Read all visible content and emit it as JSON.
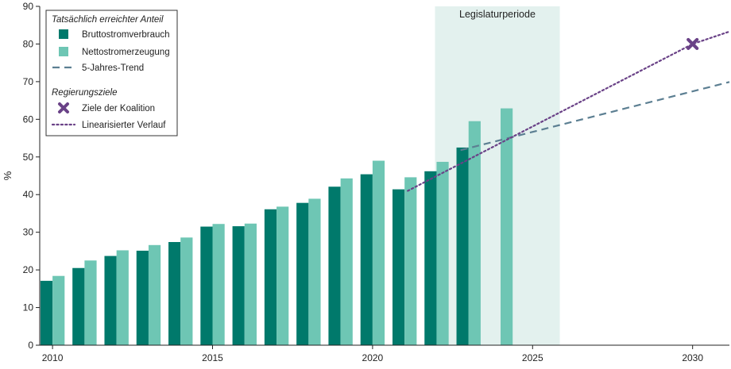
{
  "chart_data": {
    "type": "bar",
    "ylabel": "%",
    "ylim": [
      0,
      90
    ],
    "yticks": [
      0,
      10,
      20,
      30,
      40,
      50,
      60,
      70,
      80,
      90
    ],
    "xlim": [
      2009.6,
      2031.15
    ],
    "xticks": [
      2010,
      2015,
      2020,
      2025,
      2030
    ],
    "categories": [
      2010,
      2011,
      2012,
      2013,
      2014,
      2015,
      2016,
      2017,
      2018,
      2019,
      2020,
      2021,
      2022,
      2023,
      2024
    ],
    "series": [
      {
        "name": "Bruttostromverbrauch",
        "color": "#00796b",
        "values": [
          17.1,
          20.5,
          23.7,
          25.1,
          27.4,
          31.5,
          31.6,
          36.1,
          37.8,
          42.1,
          45.4,
          41.4,
          46.2,
          52.5,
          null
        ]
      },
      {
        "name": "Nettostromerzeugung",
        "color": "#6ec6b4",
        "values": [
          18.4,
          22.5,
          25.2,
          26.6,
          28.6,
          32.2,
          32.3,
          36.8,
          38.9,
          44.3,
          49.0,
          44.6,
          48.7,
          59.5,
          62.9
        ]
      }
    ],
    "trend": {
      "name": "5-Jahres-Trend",
      "color": "#5c7f92",
      "points": [
        [
          2022.75,
          51.8
        ],
        [
          2031.15,
          69.9
        ]
      ]
    },
    "target": {
      "name": "Ziele der Koalition",
      "color": "#6a4287",
      "x": 2030,
      "y": 80
    },
    "linear_path": {
      "name": "Linearisierter Verlauf",
      "color": "#6a4287",
      "points": [
        [
          2021.1,
          41.0
        ],
        [
          2030,
          80
        ],
        [
          2031.15,
          83.3
        ]
      ]
    },
    "shaded_region": {
      "label": "Legislaturperiode",
      "x_start": 2021.95,
      "x_end": 2025.85,
      "color": "#e3f1ee"
    },
    "legend": {
      "group1_title": "Tatsächlich erreichter Anteil",
      "group2_title": "Regierungsziele",
      "placement": "top-left"
    }
  }
}
